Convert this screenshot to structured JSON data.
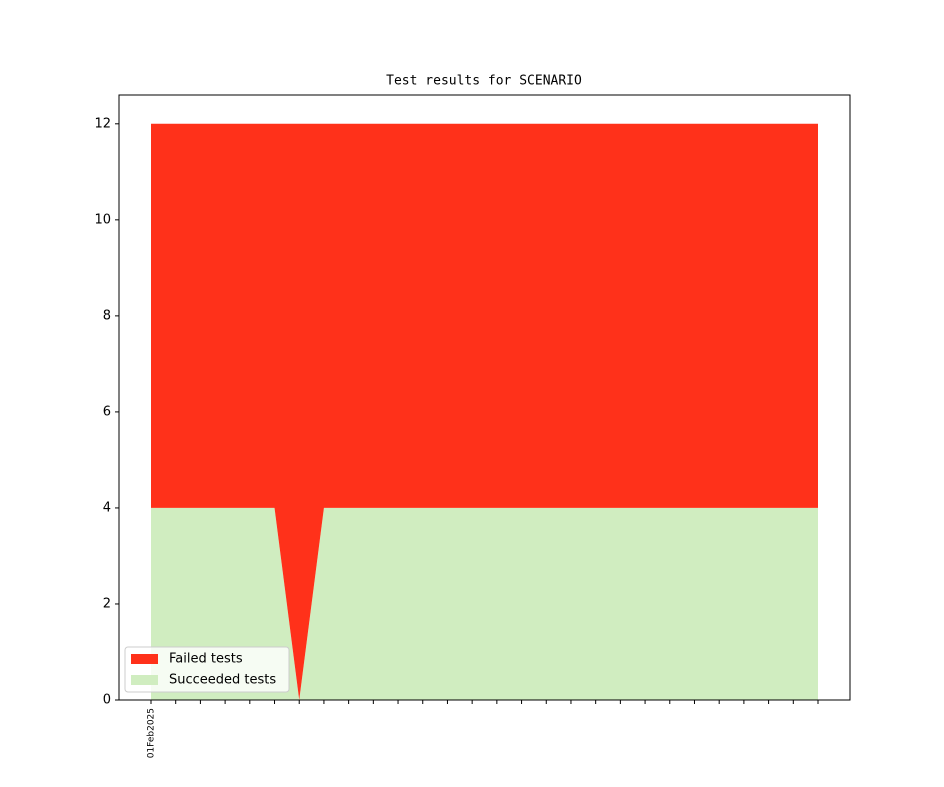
{
  "chart_data": {
    "type": "stacked_area",
    "title": "Test results for SCENARIO",
    "categories": [
      "01Feb2025",
      null,
      null,
      null,
      null,
      null,
      null,
      null,
      null,
      null,
      null,
      null,
      null,
      null,
      null,
      null,
      null,
      null,
      null,
      null,
      null,
      null,
      null,
      null,
      null,
      null,
      null,
      null
    ],
    "series": [
      {
        "name": "Failed tests",
        "color": "#ff311a",
        "values": [
          8,
          8,
          8,
          8,
          8,
          8,
          12,
          8,
          8,
          8,
          8,
          8,
          8,
          8,
          8,
          8,
          8,
          8,
          8,
          8,
          8,
          8,
          8,
          8,
          8,
          8,
          8,
          8
        ]
      },
      {
        "name": "Succeeded tests",
        "color": "#d0edc0",
        "values": [
          4,
          4,
          4,
          4,
          4,
          4,
          0,
          4,
          4,
          4,
          4,
          4,
          4,
          4,
          4,
          4,
          4,
          4,
          4,
          4,
          4,
          4,
          4,
          4,
          4,
          4,
          4,
          4
        ]
      }
    ],
    "ylim": [
      0,
      12.6
    ],
    "yticks": [
      0,
      2,
      4,
      6,
      8,
      10,
      12
    ],
    "legend": "lower left"
  }
}
